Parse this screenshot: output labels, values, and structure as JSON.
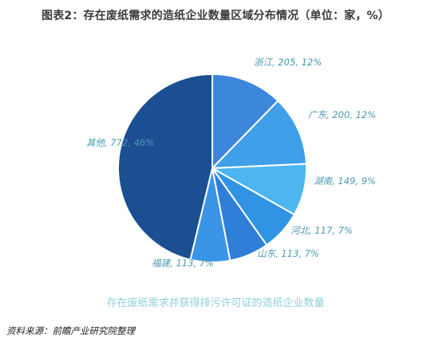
{
  "header": {
    "title": "图表2：存在废纸需求的造纸企业数量区域分布情况（单位：家，%）"
  },
  "chart_data": {
    "type": "pie",
    "title": "图表2：存在废纸需求的造纸企业数量区域分布情况（单位：家，%）",
    "unit": "家，%",
    "caption": "存在废纸需求并获得排污许可证的造纸企业数量",
    "slices": [
      {
        "name": "浙江",
        "value": 205,
        "percent": 12,
        "label": "浙江, 205, 12%",
        "color": "#3c86dc"
      },
      {
        "name": "广东",
        "value": 200,
        "percent": 12,
        "label": "广东, 200, 12%",
        "color": "#3f9fe8"
      },
      {
        "name": "湖南",
        "value": 149,
        "percent": 9,
        "label": "湖南, 149, 9%",
        "color": "#4db6f1"
      },
      {
        "name": "河北",
        "value": 117,
        "percent": 7,
        "label": "河北, 117, 7%",
        "color": "#3193e3"
      },
      {
        "name": "山东",
        "value": 113,
        "percent": 7,
        "label": "山东, 113, 7%",
        "color": "#2f7ed8"
      },
      {
        "name": "福建",
        "value": 113,
        "percent": 7,
        "label": "福建, 113, 7%",
        "color": "#3b95e6"
      },
      {
        "name": "其他",
        "value": 772,
        "percent": 46,
        "label": "其他, 772, 46%",
        "color": "#1b4f91"
      }
    ]
  },
  "footer": {
    "source": "资料来源：前瞻产业研究院整理"
  }
}
